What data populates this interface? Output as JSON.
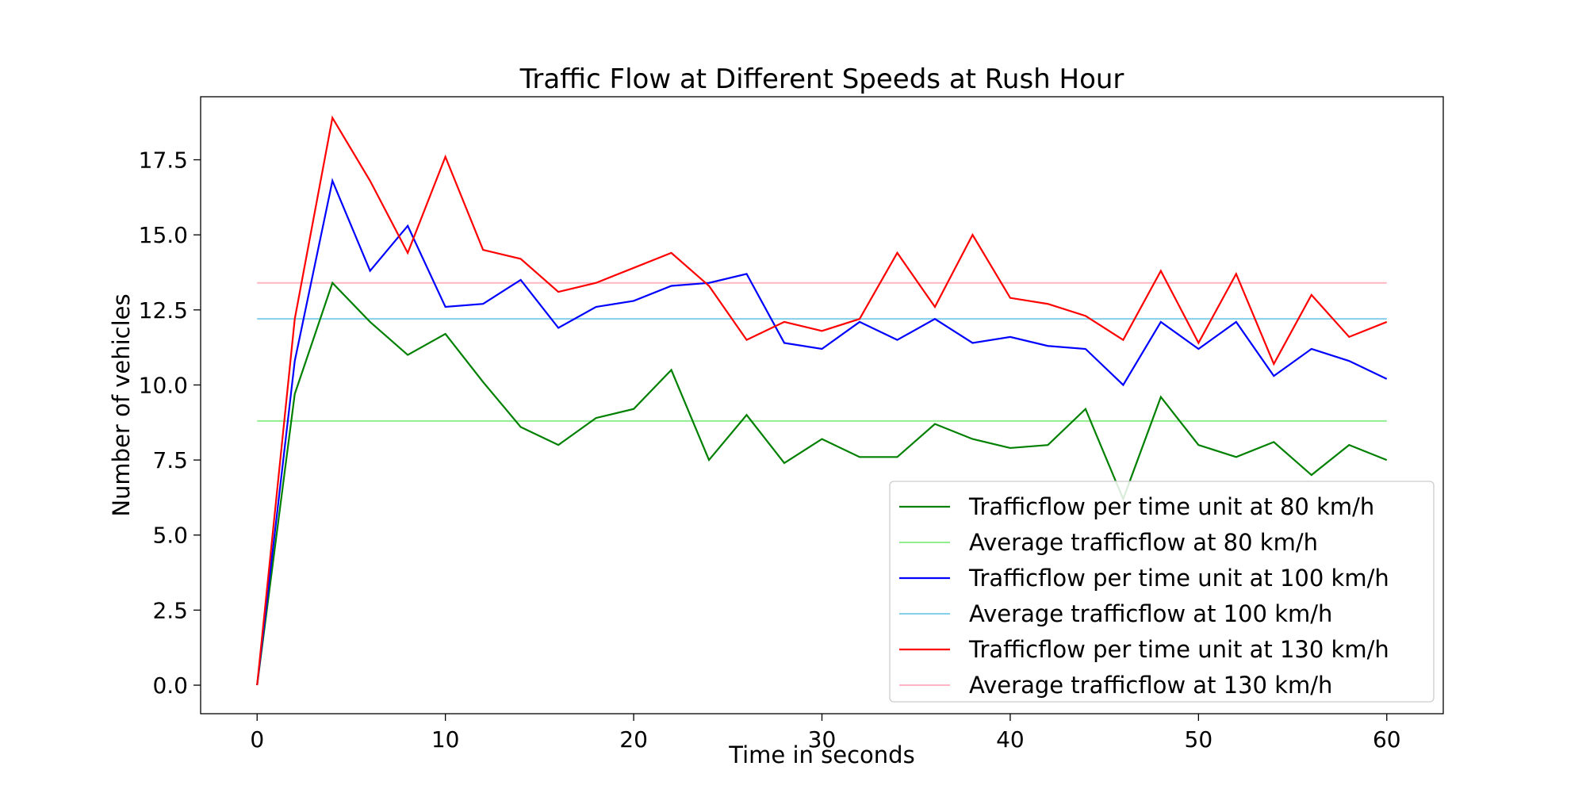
{
  "chart_data": {
    "type": "line",
    "title": "Traffic Flow at Different Speeds at Rush Hour",
    "xlabel": "Time in seconds",
    "ylabel": "Number of vehicles",
    "xlim": [
      -3,
      63
    ],
    "ylim": [
      -0.95,
      19.6
    ],
    "xticks": [
      0,
      10,
      20,
      30,
      40,
      50,
      60
    ],
    "yticks": [
      0.0,
      2.5,
      5.0,
      7.5,
      10.0,
      12.5,
      15.0,
      17.5
    ],
    "ytick_labels": [
      "0.0",
      "2.5",
      "5.0",
      "7.5",
      "10.0",
      "12.5",
      "15.0",
      "17.5"
    ],
    "legend_position": "lower-right",
    "grid": false,
    "x": [
      0,
      2,
      4,
      6,
      8,
      10,
      12,
      14,
      16,
      18,
      20,
      22,
      24,
      26,
      28,
      30,
      32,
      34,
      36,
      38,
      40,
      42,
      44,
      46,
      48,
      50,
      52,
      54,
      56,
      58,
      60
    ],
    "series": [
      {
        "name": "Trafficflow per time unit at 80 km/h",
        "color": "#008000",
        "kind": "line",
        "values": [
          0,
          9.7,
          13.4,
          12.1,
          11.0,
          11.7,
          10.1,
          8.6,
          8.0,
          8.9,
          9.2,
          10.5,
          7.5,
          9.0,
          7.4,
          8.2,
          7.6,
          7.6,
          8.7,
          8.2,
          7.9,
          8.0,
          9.2,
          6.2,
          9.6,
          8.0,
          7.6,
          8.1,
          7.0,
          8.0,
          7.5
        ]
      },
      {
        "name": "Average trafficflow at 80 km/h",
        "color": "#90ee90",
        "kind": "hline",
        "value": 8.8
      },
      {
        "name": "Trafficflow per time unit at 100 km/h",
        "color": "#0000ff",
        "kind": "line",
        "values": [
          0,
          10.8,
          16.8,
          13.8,
          15.3,
          12.6,
          12.7,
          13.5,
          11.9,
          12.6,
          12.8,
          13.3,
          13.4,
          13.7,
          11.4,
          11.2,
          12.1,
          11.5,
          12.2,
          11.4,
          11.6,
          11.3,
          11.2,
          10.0,
          12.1,
          11.2,
          12.1,
          10.3,
          11.2,
          10.8,
          10.2
        ]
      },
      {
        "name": "Average trafficflow at 100 km/h",
        "color": "#87ceeb",
        "kind": "hline",
        "value": 12.2
      },
      {
        "name": "Trafficflow per time unit at 130 km/h",
        "color": "#ff0000",
        "kind": "line",
        "values": [
          0,
          12.2,
          18.9,
          16.8,
          14.4,
          17.6,
          14.5,
          14.2,
          13.1,
          13.4,
          13.9,
          14.4,
          13.3,
          11.5,
          12.1,
          11.8,
          12.2,
          14.4,
          12.6,
          15.0,
          12.9,
          12.7,
          12.3,
          11.5,
          13.8,
          11.4,
          13.7,
          10.7,
          13.0,
          11.6,
          12.1
        ]
      },
      {
        "name": "Average trafficflow at 130 km/h",
        "color": "#ffb6c1",
        "kind": "hline",
        "value": 13.4
      }
    ]
  }
}
